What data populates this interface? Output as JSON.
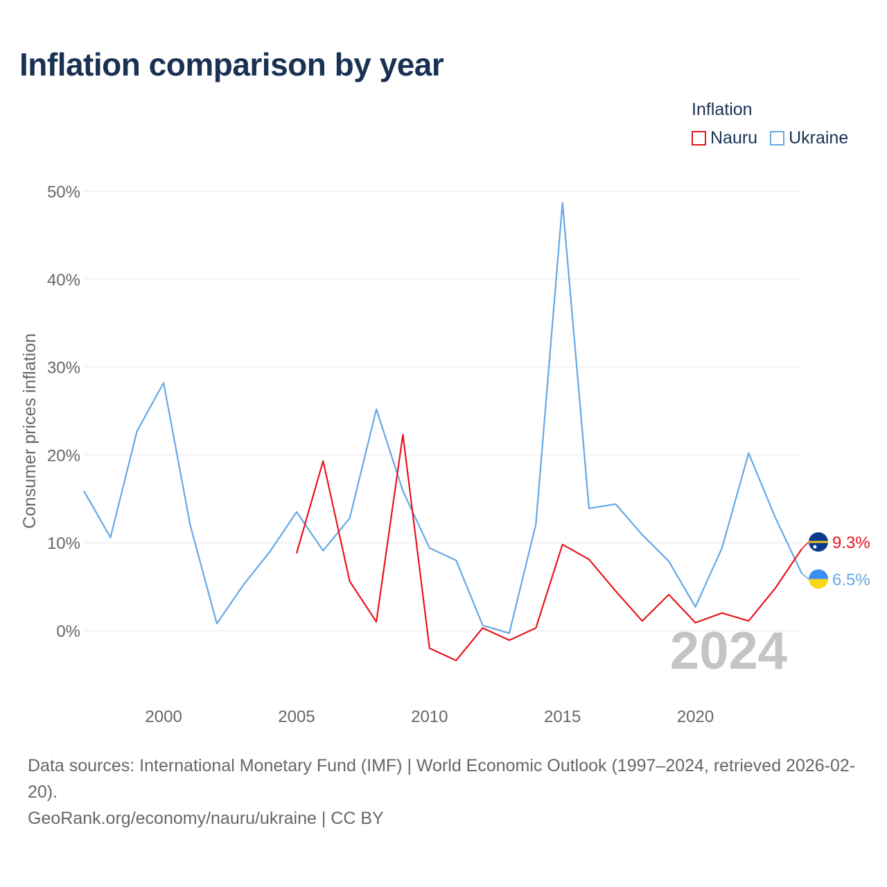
{
  "title": "Inflation comparison by year",
  "legend": {
    "title": "Inflation",
    "items": [
      {
        "label": "Nauru",
        "color": "#e8141c"
      },
      {
        "label": "Ukraine",
        "color": "#64a8e6"
      }
    ]
  },
  "chart_data": {
    "type": "line",
    "title": "Inflation comparison by year",
    "xlabel": "",
    "ylabel": "Consumer prices inflation",
    "xlim": [
      1997,
      2024
    ],
    "ylim": [
      -6,
      52
    ],
    "x_ticks": [
      2000,
      2005,
      2010,
      2015,
      2020
    ],
    "y_ticks": [
      0,
      10,
      20,
      30,
      40,
      50
    ],
    "y_tick_labels": [
      "0%",
      "10%",
      "20%",
      "30%",
      "40%",
      "50%"
    ],
    "grid": true,
    "legend_position": "top-right",
    "year_watermark": "2024",
    "series": [
      {
        "name": "Ukraine",
        "color": "#64a8e6",
        "x": [
          1997,
          1998,
          1999,
          2000,
          2001,
          2002,
          2003,
          2004,
          2005,
          2006,
          2007,
          2008,
          2009,
          2010,
          2011,
          2012,
          2013,
          2014,
          2015,
          2016,
          2017,
          2018,
          2019,
          2020,
          2021,
          2022,
          2023,
          2024
        ],
        "values": [
          15.9,
          10.6,
          22.7,
          28.2,
          12.0,
          0.8,
          5.2,
          9.0,
          13.5,
          9.1,
          12.8,
          25.2,
          15.9,
          9.4,
          8.0,
          0.6,
          -0.3,
          12.1,
          48.7,
          13.9,
          14.4,
          10.9,
          7.9,
          2.7,
          9.4,
          20.2,
          12.9,
          6.5
        ],
        "end_label": "6.5%",
        "flag": "ukraine"
      },
      {
        "name": "Nauru",
        "color": "#e8141c",
        "x": [
          2005,
          2006,
          2007,
          2008,
          2009,
          2010,
          2011,
          2012,
          2013,
          2014,
          2015,
          2016,
          2017,
          2018,
          2019,
          2020,
          2021,
          2022,
          2023,
          2024
        ],
        "values": [
          8.8,
          19.3,
          5.6,
          1.0,
          22.3,
          -2.0,
          -3.4,
          0.3,
          -1.1,
          0.3,
          9.8,
          8.1,
          4.5,
          1.1,
          4.1,
          0.9,
          2.0,
          1.1,
          4.8,
          9.3
        ],
        "end_label": "9.3%",
        "flag": "nauru"
      }
    ]
  },
  "footer": {
    "sources": "Data sources: International Monetary Fund (IMF) | World Economic Outlook (1997–2024, retrieved 2026-02-20).",
    "credit": "GeoRank.org/economy/nauru/ukraine | CC BY"
  }
}
